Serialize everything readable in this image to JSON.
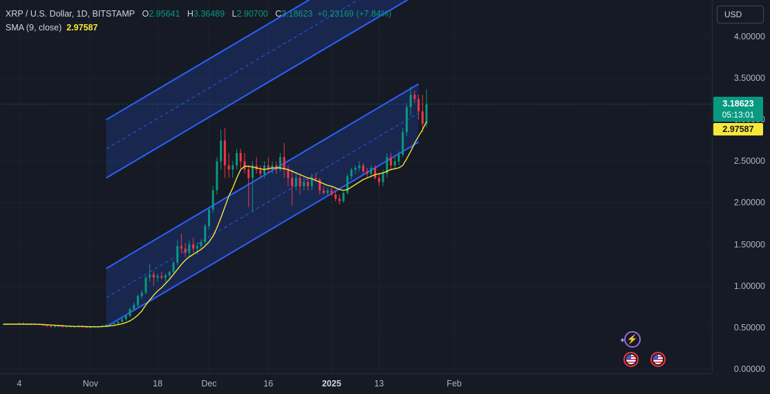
{
  "legend": {
    "symbol": "XRP / U.S. Dollar, 1D, BITSTAMP",
    "o_label": "O",
    "o_value": "2.95641",
    "h_label": "H",
    "h_value": "3.36489",
    "l_label": "L",
    "l_value": "2.90700",
    "c_label": "C",
    "c_value": "3.18623",
    "change": "+0.23169 (+7.84%)",
    "sma_label": "SMA (9, close)",
    "sma_value": "2.97587"
  },
  "currency": "USD",
  "last_price": "3.18623",
  "countdown": "05:13:01",
  "sma_last": "2.97587",
  "colors": {
    "background": "#161a25",
    "up": "#089981",
    "down": "#f23645",
    "sma": "#f7e739",
    "channel": "#2962ff",
    "channel_fill": "#1e3a8a"
  },
  "icons": [
    "bolt-icon",
    "sparkle-icon",
    "us-flag-icon"
  ],
  "chart_data": {
    "type": "candlestick",
    "ylim": [
      -0.05,
      4.44
    ],
    "y_ticks": [
      "4.00000",
      "3.50000",
      "3.00000",
      "2.50000",
      "2.00000",
      "1.50000",
      "1.00000",
      "0.50000",
      "0.00000"
    ],
    "y_tick_values": [
      4.0,
      3.5,
      3.0,
      2.5,
      2.0,
      1.5,
      1.0,
      0.5,
      0.0
    ],
    "x_ticks": [
      "4",
      "Nov",
      "18",
      "Dec",
      "16",
      "2025",
      "13",
      "Feb"
    ],
    "x_tick_dates": [
      "2024-10-14",
      "2024-11-01",
      "2024-11-18",
      "2024-12-01",
      "2024-12-16",
      "2025-01-01",
      "2025-01-13",
      "2025-02-01"
    ],
    "x_tick_bold": [
      false,
      false,
      false,
      false,
      false,
      true,
      false,
      false
    ],
    "current_price": 3.18623,
    "series": [
      {
        "name": "XRP / U.S. Dollar",
        "start_date": "2024-10-10",
        "candles": [
          [
            0.54,
            0.55,
            0.53,
            0.54
          ],
          [
            0.54,
            0.55,
            0.53,
            0.545
          ],
          [
            0.545,
            0.55,
            0.53,
            0.54
          ],
          [
            0.54,
            0.55,
            0.535,
            0.545
          ],
          [
            0.545,
            0.56,
            0.54,
            0.55
          ],
          [
            0.55,
            0.56,
            0.54,
            0.545
          ],
          [
            0.545,
            0.55,
            0.53,
            0.54
          ],
          [
            0.54,
            0.55,
            0.53,
            0.54
          ],
          [
            0.54,
            0.55,
            0.53,
            0.545
          ],
          [
            0.545,
            0.55,
            0.53,
            0.535
          ],
          [
            0.535,
            0.54,
            0.52,
            0.53
          ],
          [
            0.53,
            0.54,
            0.51,
            0.52
          ],
          [
            0.52,
            0.53,
            0.5,
            0.51
          ],
          [
            0.51,
            0.53,
            0.5,
            0.52
          ],
          [
            0.52,
            0.53,
            0.51,
            0.52
          ],
          [
            0.52,
            0.53,
            0.5,
            0.51
          ],
          [
            0.51,
            0.52,
            0.5,
            0.515
          ],
          [
            0.515,
            0.52,
            0.5,
            0.51
          ],
          [
            0.51,
            0.52,
            0.5,
            0.51
          ],
          [
            0.51,
            0.53,
            0.5,
            0.52
          ],
          [
            0.52,
            0.53,
            0.5,
            0.51
          ],
          [
            0.51,
            0.52,
            0.49,
            0.5
          ],
          [
            0.5,
            0.52,
            0.49,
            0.51
          ],
          [
            0.51,
            0.52,
            0.5,
            0.51
          ],
          [
            0.51,
            0.52,
            0.5,
            0.51
          ],
          [
            0.51,
            0.53,
            0.5,
            0.52
          ],
          [
            0.52,
            0.54,
            0.51,
            0.53
          ],
          [
            0.53,
            0.55,
            0.52,
            0.54
          ],
          [
            0.54,
            0.56,
            0.53,
            0.55
          ],
          [
            0.55,
            0.58,
            0.54,
            0.57
          ],
          [
            0.57,
            0.62,
            0.56,
            0.6
          ],
          [
            0.6,
            0.66,
            0.58,
            0.64
          ],
          [
            0.64,
            0.74,
            0.62,
            0.72
          ],
          [
            0.72,
            0.8,
            0.7,
            0.77
          ],
          [
            0.77,
            0.9,
            0.75,
            0.88
          ],
          [
            0.88,
            0.95,
            0.85,
            0.92
          ],
          [
            0.92,
            1.12,
            0.9,
            1.1
          ],
          [
            1.1,
            1.27,
            1.05,
            1.14
          ],
          [
            1.14,
            1.18,
            1.0,
            1.1
          ],
          [
            1.1,
            1.15,
            1.05,
            1.12
          ],
          [
            1.12,
            1.17,
            1.08,
            1.1
          ],
          [
            1.1,
            1.15,
            1.05,
            1.13
          ],
          [
            1.13,
            1.18,
            1.1,
            1.17
          ],
          [
            1.17,
            1.3,
            1.15,
            1.28
          ],
          [
            1.28,
            1.55,
            1.25,
            1.48
          ],
          [
            1.48,
            1.63,
            1.4,
            1.45
          ],
          [
            1.45,
            1.52,
            1.35,
            1.4
          ],
          [
            1.4,
            1.55,
            1.35,
            1.5
          ],
          [
            1.5,
            1.58,
            1.4,
            1.45
          ],
          [
            1.45,
            1.52,
            1.38,
            1.48
          ],
          [
            1.48,
            1.56,
            1.45,
            1.53
          ],
          [
            1.53,
            1.75,
            1.5,
            1.72
          ],
          [
            1.72,
            1.95,
            1.68,
            1.92
          ],
          [
            1.92,
            2.2,
            1.88,
            2.15
          ],
          [
            2.15,
            2.55,
            2.1,
            2.5
          ],
          [
            2.5,
            2.88,
            2.4,
            2.75
          ],
          [
            2.75,
            2.9,
            2.3,
            2.45
          ],
          [
            2.45,
            2.6,
            2.3,
            2.4
          ],
          [
            2.4,
            2.5,
            2.3,
            2.45
          ],
          [
            2.45,
            2.65,
            2.4,
            2.6
          ],
          [
            2.6,
            2.65,
            2.4,
            2.5
          ],
          [
            2.5,
            2.6,
            2.35,
            2.4
          ],
          [
            2.4,
            2.45,
            1.95,
            2.3
          ],
          [
            2.3,
            2.5,
            1.9,
            2.45
          ],
          [
            2.45,
            2.55,
            2.35,
            2.4
          ],
          [
            2.4,
            2.45,
            2.3,
            2.35
          ],
          [
            2.35,
            2.5,
            2.3,
            2.45
          ],
          [
            2.45,
            2.55,
            2.35,
            2.4
          ],
          [
            2.4,
            2.5,
            2.35,
            2.45
          ],
          [
            2.45,
            2.5,
            2.35,
            2.4
          ],
          [
            2.4,
            2.6,
            2.38,
            2.55
          ],
          [
            2.55,
            2.72,
            2.3,
            2.4
          ],
          [
            2.4,
            2.45,
            2.2,
            2.3
          ],
          [
            2.3,
            2.4,
            1.97,
            2.2
          ],
          [
            2.2,
            2.35,
            2.15,
            2.3
          ],
          [
            2.3,
            2.35,
            2.1,
            2.2
          ],
          [
            2.2,
            2.3,
            2.15,
            2.25
          ],
          [
            2.25,
            2.3,
            2.15,
            2.2
          ],
          [
            2.2,
            2.35,
            2.15,
            2.3
          ],
          [
            2.3,
            2.35,
            2.25,
            2.28
          ],
          [
            2.28,
            2.3,
            2.1,
            2.15
          ],
          [
            2.15,
            2.2,
            2.1,
            2.12
          ],
          [
            2.12,
            2.18,
            2.08,
            2.15
          ],
          [
            2.15,
            2.2,
            2.08,
            2.1
          ],
          [
            2.1,
            2.15,
            2.02,
            2.05
          ],
          [
            2.05,
            2.1,
            1.98,
            2.02
          ],
          [
            2.02,
            2.15,
            2.0,
            2.12
          ],
          [
            2.12,
            2.35,
            2.1,
            2.32
          ],
          [
            2.32,
            2.42,
            2.28,
            2.4
          ],
          [
            2.4,
            2.45,
            2.35,
            2.42
          ],
          [
            2.42,
            2.5,
            2.38,
            2.45
          ],
          [
            2.45,
            2.48,
            2.35,
            2.38
          ],
          [
            2.38,
            2.42,
            2.3,
            2.35
          ],
          [
            2.35,
            2.45,
            2.3,
            2.42
          ],
          [
            2.42,
            2.45,
            2.28,
            2.3
          ],
          [
            2.3,
            2.35,
            2.2,
            2.25
          ],
          [
            2.25,
            2.4,
            2.2,
            2.35
          ],
          [
            2.35,
            2.6,
            2.3,
            2.55
          ],
          [
            2.55,
            2.6,
            2.4,
            2.45
          ],
          [
            2.45,
            2.55,
            2.4,
            2.5
          ],
          [
            2.5,
            2.62,
            2.45,
            2.58
          ],
          [
            2.58,
            2.9,
            2.55,
            2.85
          ],
          [
            2.85,
            3.2,
            2.8,
            3.15
          ],
          [
            3.15,
            3.4,
            3.05,
            3.3
          ],
          [
            3.3,
            3.35,
            3.2,
            3.25
          ],
          [
            3.25,
            3.3,
            3.0,
            3.1
          ],
          [
            3.1,
            3.3,
            2.85,
            2.95
          ],
          [
            2.95641,
            3.36489,
            2.907,
            3.18623
          ]
        ]
      },
      {
        "name": "SMA (9, close)",
        "start_date": "2024-10-10",
        "values": [
          0.54,
          0.54,
          0.54,
          0.54,
          0.54,
          0.54,
          0.54,
          0.54,
          0.54,
          0.538,
          0.536,
          0.533,
          0.53,
          0.527,
          0.524,
          0.521,
          0.518,
          0.516,
          0.514,
          0.513,
          0.512,
          0.511,
          0.51,
          0.51,
          0.51,
          0.512,
          0.515,
          0.52,
          0.525,
          0.535,
          0.545,
          0.56,
          0.58,
          0.61,
          0.65,
          0.7,
          0.77,
          0.83,
          0.89,
          0.94,
          0.98,
          1.03,
          1.08,
          1.14,
          1.2,
          1.26,
          1.31,
          1.35,
          1.38,
          1.41,
          1.44,
          1.48,
          1.53,
          1.6,
          1.7,
          1.82,
          1.95,
          2.08,
          2.18,
          2.3,
          2.4,
          2.44,
          2.44,
          2.43,
          2.42,
          2.41,
          2.4,
          2.41,
          2.42,
          2.42,
          2.42,
          2.41,
          2.4,
          2.38,
          2.36,
          2.34,
          2.32,
          2.3,
          2.29,
          2.27,
          2.25,
          2.23,
          2.21,
          2.2,
          2.18,
          2.16,
          2.15,
          2.16,
          2.19,
          2.22,
          2.25,
          2.28,
          2.3,
          2.32,
          2.34,
          2.35,
          2.36,
          2.38,
          2.4,
          2.41,
          2.42,
          2.45,
          2.53,
          2.62,
          2.72,
          2.8,
          2.88,
          2.97587
        ]
      }
    ],
    "regression_channel": {
      "start_date": "2024-11-05",
      "end_date": "2025-01-23",
      "middle": [
        0.86,
        3.08
      ],
      "offset": 0.35,
      "outer_offset": 1.79
    }
  }
}
